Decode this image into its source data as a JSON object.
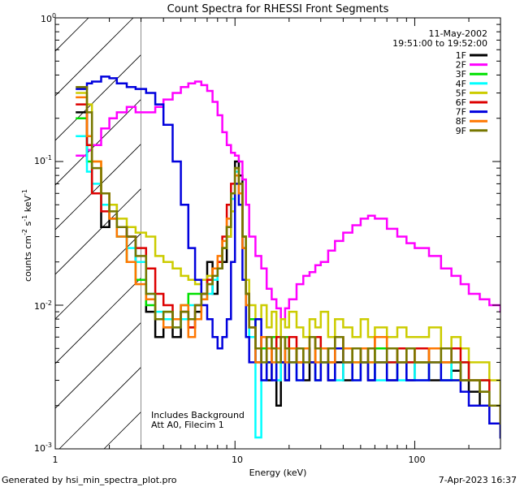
{
  "chart_data": {
    "type": "line",
    "title": "Count Spectra for RHESSI Front Segments",
    "xlabel": "Energy (keV)",
    "ylabel": "counts cm⁻² s⁻¹ keV⁻¹",
    "ylabel_parts": {
      "main": "counts cm",
      "cm_exp": "-2",
      "s": " s",
      "s_exp": "-1",
      "kev": " keV",
      "kev_exp": "-1"
    },
    "xscale": "log",
    "yscale": "log",
    "xlim": [
      1,
      300
    ],
    "ylim": [
      0.001,
      1
    ],
    "xticks": [
      {
        "v": 1,
        "label": "1"
      },
      {
        "v": 10,
        "label": "10"
      },
      {
        "v": 100,
        "label": "100"
      }
    ],
    "yticks": [
      {
        "v": 1,
        "base": "10",
        "exp": "0"
      },
      {
        "v": 0.1,
        "base": "10",
        "exp": "-1"
      },
      {
        "v": 0.01,
        "base": "10",
        "exp": "-2"
      },
      {
        "v": 0.001,
        "base": "10",
        "exp": "-3"
      }
    ],
    "date": "11-May-2002",
    "time_range": "19:51:00 to 19:52:00",
    "hatched_region_keV": [
      1,
      3
    ],
    "notes": [
      "Includes Background",
      "Att A0, Filecim 1"
    ],
    "series": [
      {
        "name": "1F",
        "color": "#000000",
        "x": [
          1.3,
          1.5,
          1.6,
          1.8,
          2.0,
          2.2,
          2.5,
          2.8,
          3.2,
          3.6,
          4.0,
          4.5,
          5.0,
          5.5,
          6.0,
          6.5,
          7.0,
          7.5,
          8.0,
          8.5,
          9.0,
          9.5,
          10.0,
          10.5,
          11.0,
          11.5,
          12,
          13,
          14,
          15,
          16,
          17,
          18,
          19,
          20,
          22,
          24,
          26,
          28,
          30,
          33,
          36,
          40,
          45,
          50,
          55,
          60,
          70,
          80,
          90,
          100,
          120,
          140,
          160,
          180,
          200,
          230,
          260,
          300
        ],
        "values": [
          0.22,
          0.12,
          0.06,
          0.035,
          0.05,
          0.035,
          0.03,
          0.02,
          0.009,
          0.006,
          0.007,
          0.006,
          0.009,
          0.007,
          0.009,
          0.012,
          0.02,
          0.012,
          0.018,
          0.02,
          0.03,
          0.06,
          0.1,
          0.08,
          0.03,
          0.012,
          0.008,
          0.004,
          0.006,
          0.003,
          0.005,
          0.002,
          0.004,
          0.003,
          0.005,
          0.004,
          0.003,
          0.004,
          0.003,
          0.004,
          0.003,
          0.004,
          0.003,
          0.005,
          0.004,
          0.003,
          0.004,
          0.003,
          0.004,
          0.003,
          0.004,
          0.003,
          0.003,
          0.0035,
          0.003,
          0.0025,
          0.002,
          0.0015,
          0.0012
        ]
      },
      {
        "name": "2F",
        "color": "#ff00ff",
        "x": [
          1.3,
          1.5,
          1.6,
          1.8,
          2.0,
          2.2,
          2.5,
          2.8,
          3.2,
          3.6,
          4.0,
          4.5,
          5.0,
          5.5,
          6.0,
          6.5,
          7.0,
          7.5,
          8.0,
          8.5,
          9.0,
          9.5,
          10.0,
          10.5,
          11.0,
          11.5,
          12,
          13,
          14,
          15,
          16,
          17,
          18,
          19,
          20,
          22,
          24,
          26,
          28,
          30,
          33,
          36,
          40,
          45,
          50,
          55,
          60,
          70,
          80,
          90,
          100,
          120,
          140,
          160,
          180,
          200,
          230,
          260,
          300
        ],
        "values": [
          0.11,
          0.12,
          0.13,
          0.17,
          0.2,
          0.22,
          0.24,
          0.22,
          0.22,
          0.24,
          0.27,
          0.3,
          0.33,
          0.35,
          0.36,
          0.34,
          0.31,
          0.26,
          0.21,
          0.16,
          0.13,
          0.115,
          0.11,
          0.1,
          0.075,
          0.05,
          0.03,
          0.022,
          0.018,
          0.013,
          0.011,
          0.0095,
          0.008,
          0.0095,
          0.011,
          0.014,
          0.016,
          0.017,
          0.019,
          0.02,
          0.024,
          0.028,
          0.032,
          0.036,
          0.04,
          0.042,
          0.04,
          0.034,
          0.03,
          0.027,
          0.025,
          0.022,
          0.018,
          0.016,
          0.014,
          0.012,
          0.011,
          0.01,
          0.009
        ]
      },
      {
        "name": "3F",
        "color": "#00e000",
        "x": [
          1.3,
          1.5,
          1.6,
          1.8,
          2.0,
          2.2,
          2.5,
          2.8,
          3.2,
          3.6,
          4.0,
          4.5,
          5.0,
          5.5,
          6.0,
          6.5,
          7.0,
          7.5,
          8.0,
          8.5,
          9.0,
          9.5,
          10.0,
          10.5,
          11.0,
          11.5,
          12,
          13,
          14,
          15,
          16,
          17,
          18,
          19,
          20,
          22,
          24,
          26,
          28,
          30,
          33,
          36,
          40,
          45,
          50,
          55,
          60,
          70,
          80,
          90,
          100,
          120,
          140,
          160,
          180,
          200,
          230,
          260,
          300
        ],
        "values": [
          0.2,
          0.1,
          0.06,
          0.05,
          0.04,
          0.03,
          0.02,
          0.015,
          0.01,
          0.008,
          0.009,
          0.008,
          0.01,
          0.012,
          0.012,
          0.011,
          0.015,
          0.018,
          0.02,
          0.025,
          0.035,
          0.06,
          0.09,
          0.07,
          0.03,
          0.012,
          0.008,
          0.005,
          0.005,
          0.004,
          0.006,
          0.005,
          0.004,
          0.006,
          0.005,
          0.004,
          0.005,
          0.004,
          0.006,
          0.005,
          0.004,
          0.006,
          0.005,
          0.004,
          0.005,
          0.004,
          0.005,
          0.004,
          0.005,
          0.004,
          0.004,
          0.005,
          0.004,
          0.003,
          0.004,
          0.003,
          0.003,
          0.002,
          0.0016
        ]
      },
      {
        "name": "4F",
        "color": "#00ffff",
        "x": [
          1.3,
          1.5,
          1.6,
          1.8,
          2.0,
          2.2,
          2.5,
          2.8,
          3.2,
          3.6,
          4.0,
          4.5,
          5.0,
          5.5,
          6.0,
          6.5,
          7.0,
          7.5,
          8.0,
          8.5,
          9.0,
          9.5,
          10.0,
          10.5,
          11.0,
          11.5,
          12,
          13,
          14,
          15,
          16,
          17,
          18,
          19,
          20,
          22,
          24,
          26,
          28,
          30,
          33,
          36,
          40,
          45,
          50,
          55,
          60,
          70,
          80,
          90,
          100,
          120,
          140,
          160,
          180,
          200,
          230,
          260,
          300
        ],
        "values": [
          0.15,
          0.085,
          0.07,
          0.05,
          0.04,
          0.03,
          0.025,
          0.02,
          0.012,
          0.009,
          0.008,
          0.007,
          0.008,
          0.01,
          0.01,
          0.011,
          0.012,
          0.015,
          0.02,
          0.025,
          0.035,
          0.055,
          0.085,
          0.07,
          0.025,
          0.01,
          0.006,
          0.0012,
          0.003,
          0.004,
          0.005,
          0.003,
          0.004,
          0.005,
          0.004,
          0.003,
          0.005,
          0.004,
          0.003,
          0.004,
          0.005,
          0.003,
          0.004,
          0.003,
          0.004,
          0.005,
          0.003,
          0.004,
          0.003,
          0.004,
          0.003,
          0.004,
          0.003,
          0.004,
          0.003,
          0.003,
          0.0025,
          0.002,
          0.0015
        ]
      },
      {
        "name": "5F",
        "color": "#cccc00",
        "x": [
          1.3,
          1.5,
          1.6,
          1.8,
          2.0,
          2.2,
          2.5,
          2.8,
          3.2,
          3.6,
          4.0,
          4.5,
          5.0,
          5.5,
          6.0,
          6.5,
          7.0,
          7.5,
          8.0,
          8.5,
          9.0,
          9.5,
          10.0,
          10.5,
          11.0,
          11.5,
          12,
          13,
          14,
          15,
          16,
          17,
          18,
          19,
          20,
          22,
          24,
          26,
          28,
          30,
          33,
          36,
          40,
          45,
          50,
          55,
          60,
          70,
          80,
          90,
          100,
          120,
          140,
          160,
          180,
          200,
          230,
          260,
          300
        ],
        "values": [
          0.3,
          0.25,
          0.1,
          0.06,
          0.05,
          0.04,
          0.035,
          0.032,
          0.03,
          0.022,
          0.02,
          0.018,
          0.016,
          0.015,
          0.014,
          0.015,
          0.016,
          0.018,
          0.02,
          0.025,
          0.03,
          0.045,
          0.07,
          0.06,
          0.03,
          0.015,
          0.01,
          0.008,
          0.01,
          0.007,
          0.009,
          0.006,
          0.008,
          0.007,
          0.009,
          0.007,
          0.006,
          0.008,
          0.007,
          0.009,
          0.006,
          0.008,
          0.007,
          0.006,
          0.008,
          0.006,
          0.007,
          0.006,
          0.007,
          0.006,
          0.006,
          0.007,
          0.005,
          0.006,
          0.005,
          0.004,
          0.004,
          0.003,
          0.002
        ]
      },
      {
        "name": "6F",
        "color": "#dd0000",
        "x": [
          1.3,
          1.5,
          1.6,
          1.8,
          2.0,
          2.2,
          2.5,
          2.8,
          3.2,
          3.6,
          4.0,
          4.5,
          5.0,
          5.5,
          6.0,
          6.5,
          7.0,
          7.5,
          8.0,
          8.5,
          9.0,
          9.5,
          10.0,
          10.5,
          11.0,
          11.5,
          12,
          13,
          14,
          15,
          16,
          17,
          18,
          19,
          20,
          22,
          24,
          26,
          28,
          30,
          33,
          36,
          40,
          45,
          50,
          55,
          60,
          70,
          80,
          90,
          100,
          120,
          140,
          160,
          180,
          200,
          230,
          260,
          300
        ],
        "values": [
          0.25,
          0.13,
          0.06,
          0.045,
          0.04,
          0.035,
          0.03,
          0.025,
          0.018,
          0.012,
          0.01,
          0.008,
          0.009,
          0.007,
          0.01,
          0.012,
          0.015,
          0.018,
          0.02,
          0.03,
          0.05,
          0.07,
          0.09,
          0.07,
          0.025,
          0.012,
          0.007,
          0.005,
          0.006,
          0.004,
          0.005,
          0.006,
          0.004,
          0.005,
          0.006,
          0.004,
          0.005,
          0.004,
          0.006,
          0.005,
          0.004,
          0.006,
          0.004,
          0.005,
          0.004,
          0.005,
          0.006,
          0.004,
          0.005,
          0.004,
          0.005,
          0.004,
          0.004,
          0.005,
          0.004,
          0.003,
          0.003,
          0.002,
          0.0016
        ]
      },
      {
        "name": "7F",
        "color": "#0000dd",
        "x": [
          1.3,
          1.5,
          1.6,
          1.8,
          2.0,
          2.2,
          2.5,
          2.8,
          3.2,
          3.6,
          4.0,
          4.5,
          5.0,
          5.5,
          6.0,
          6.5,
          7.0,
          7.5,
          8.0,
          8.5,
          9.0,
          9.5,
          10.0,
          10.5,
          11.0,
          11.5,
          12,
          13,
          14,
          15,
          16,
          17,
          18,
          19,
          20,
          22,
          24,
          26,
          28,
          30,
          33,
          36,
          40,
          45,
          50,
          55,
          60,
          70,
          80,
          90,
          100,
          120,
          140,
          160,
          180,
          200,
          230,
          260,
          300
        ],
        "values": [
          0.32,
          0.35,
          0.36,
          0.39,
          0.38,
          0.35,
          0.33,
          0.32,
          0.3,
          0.25,
          0.18,
          0.1,
          0.05,
          0.025,
          0.015,
          0.01,
          0.008,
          0.006,
          0.005,
          0.006,
          0.008,
          0.02,
          0.07,
          0.05,
          0.015,
          0.006,
          0.004,
          0.008,
          0.003,
          0.004,
          0.003,
          0.005,
          0.004,
          0.003,
          0.004,
          0.003,
          0.005,
          0.004,
          0.003,
          0.004,
          0.003,
          0.005,
          0.004,
          0.003,
          0.004,
          0.003,
          0.004,
          0.003,
          0.004,
          0.003,
          0.003,
          0.004,
          0.003,
          0.003,
          0.0025,
          0.002,
          0.002,
          0.0015,
          0.0012
        ]
      },
      {
        "name": "8F",
        "color": "#ff7700",
        "x": [
          1.3,
          1.5,
          1.6,
          1.8,
          2.0,
          2.2,
          2.5,
          2.8,
          3.2,
          3.6,
          4.0,
          4.5,
          5.0,
          5.5,
          6.0,
          6.5,
          7.0,
          7.5,
          8.0,
          8.5,
          9.0,
          9.5,
          10.0,
          10.5,
          11.0,
          11.5,
          12,
          13,
          14,
          15,
          16,
          17,
          18,
          19,
          20,
          22,
          24,
          26,
          28,
          30,
          33,
          36,
          40,
          45,
          50,
          55,
          60,
          70,
          80,
          90,
          100,
          120,
          140,
          160,
          180,
          200,
          230,
          260,
          300
        ],
        "values": [
          0.28,
          0.15,
          0.1,
          0.06,
          0.04,
          0.03,
          0.02,
          0.014,
          0.011,
          0.008,
          0.007,
          0.008,
          0.01,
          0.006,
          0.008,
          0.011,
          0.014,
          0.018,
          0.022,
          0.028,
          0.04,
          0.06,
          0.08,
          0.06,
          0.025,
          0.01,
          0.007,
          0.004,
          0.006,
          0.005,
          0.004,
          0.005,
          0.006,
          0.004,
          0.005,
          0.004,
          0.005,
          0.006,
          0.004,
          0.005,
          0.004,
          0.006,
          0.005,
          0.004,
          0.005,
          0.004,
          0.006,
          0.005,
          0.004,
          0.005,
          0.004,
          0.005,
          0.004,
          0.004,
          0.003,
          0.003,
          0.0025,
          0.002,
          0.0015
        ]
      },
      {
        "name": "9F",
        "color": "#777700",
        "x": [
          1.3,
          1.5,
          1.6,
          1.8,
          2.0,
          2.2,
          2.5,
          2.8,
          3.2,
          3.6,
          4.0,
          4.5,
          5.0,
          5.5,
          6.0,
          6.5,
          7.0,
          7.5,
          8.0,
          8.5,
          9.0,
          9.5,
          10.0,
          10.5,
          11.0,
          11.5,
          12,
          13,
          14,
          15,
          16,
          17,
          18,
          19,
          20,
          22,
          24,
          26,
          28,
          30,
          33,
          36,
          40,
          45,
          50,
          55,
          60,
          70,
          80,
          90,
          100,
          120,
          140,
          160,
          180,
          200,
          230,
          260,
          300
        ],
        "values": [
          0.33,
          0.22,
          0.09,
          0.06,
          0.045,
          0.035,
          0.03,
          0.022,
          0.012,
          0.008,
          0.009,
          0.007,
          0.009,
          0.008,
          0.01,
          0.012,
          0.014,
          0.016,
          0.018,
          0.025,
          0.035,
          0.06,
          0.09,
          0.07,
          0.03,
          0.012,
          0.007,
          0.005,
          0.004,
          0.006,
          0.005,
          0.004,
          0.006,
          0.005,
          0.004,
          0.005,
          0.004,
          0.006,
          0.005,
          0.004,
          0.005,
          0.006,
          0.004,
          0.005,
          0.004,
          0.005,
          0.004,
          0.005,
          0.004,
          0.005,
          0.004,
          0.004,
          0.005,
          0.004,
          0.003,
          0.003,
          0.0025,
          0.002,
          0.0015
        ]
      }
    ]
  },
  "footer": {
    "generated": "Generated by hsi_min_spectra_plot.pro",
    "timestamp": "7-Apr-2023 16:37"
  }
}
